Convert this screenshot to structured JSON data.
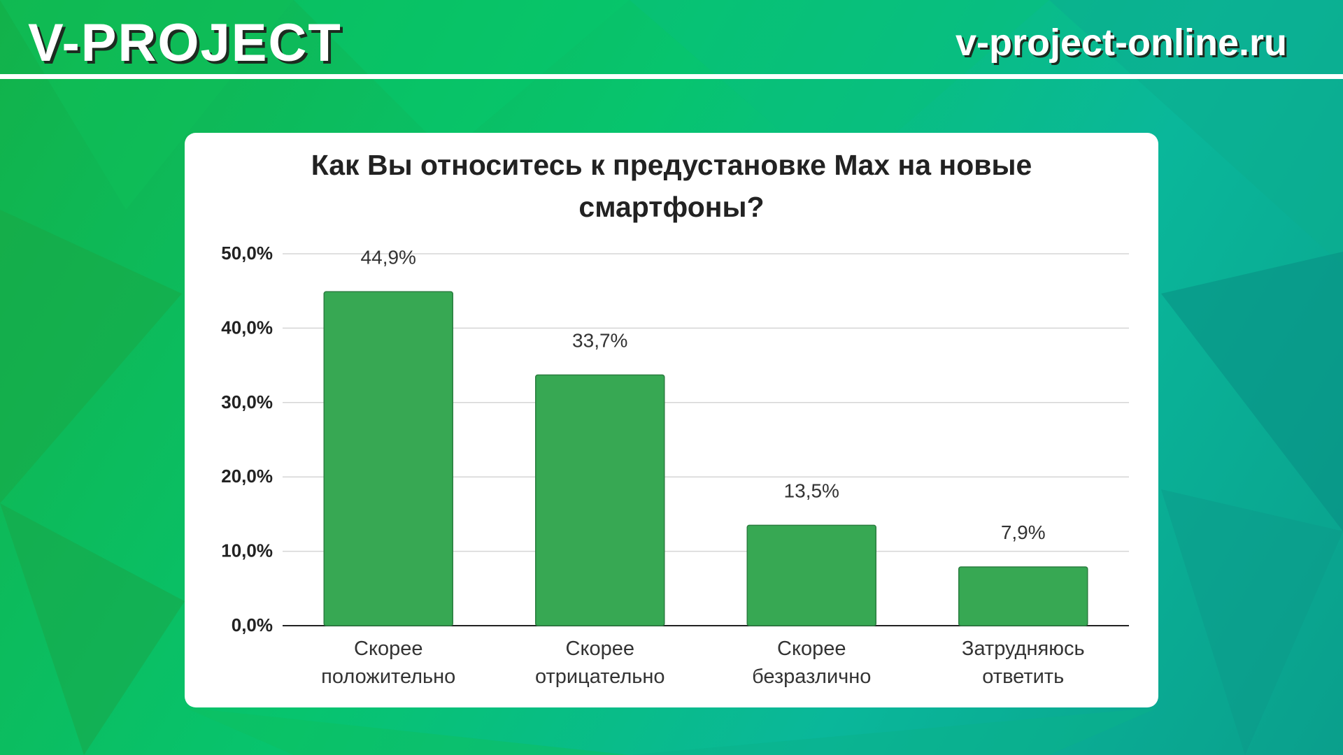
{
  "header": {
    "brand": "V-PROJECT",
    "site": "v-project-online.ru"
  },
  "colors": {
    "bar": "#37a853",
    "bar_border": "#2a7d3f",
    "grid": "#d5d5d5",
    "axis": "#222222"
  },
  "chart_data": {
    "type": "bar",
    "title_lines": [
      "Как Вы относитесь к предустановке Max на новые",
      "смартфоны?"
    ],
    "categories": [
      [
        "Скорее",
        "положительно"
      ],
      [
        "Скорее",
        "отрицательно"
      ],
      [
        "Скорее",
        "безразлично"
      ],
      [
        "Затрудняюсь",
        "ответить"
      ]
    ],
    "values": [
      44.9,
      33.7,
      13.5,
      7.9
    ],
    "value_labels": [
      "44,9%",
      "33,7%",
      "13,5%",
      "7,9%"
    ],
    "yticks": [
      0,
      10,
      20,
      30,
      40,
      50
    ],
    "ytick_labels": [
      "0,0%",
      "10,0%",
      "20,0%",
      "30,0%",
      "40,0%",
      "50,0%"
    ],
    "ylim": [
      0,
      50
    ],
    "grid": true,
    "legend": "none"
  }
}
